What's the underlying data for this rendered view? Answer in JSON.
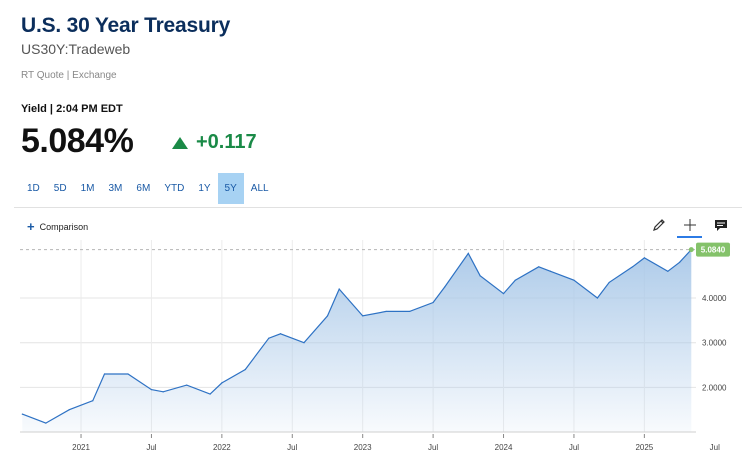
{
  "header": {
    "title": "U.S. 30 Year Treasury",
    "subtitle": "US30Y:Tradeweb",
    "quote_type": "RT Quote | Exchange",
    "yield_line": "Yield | 2:04 PM EDT",
    "price": "5.084%",
    "change": "+0.117"
  },
  "range_tabs": [
    "1D",
    "5D",
    "1M",
    "3M",
    "6M",
    "YTD",
    "1Y",
    "5Y",
    "ALL"
  ],
  "active_range": "5Y",
  "comparison_label": "Comparison",
  "toolbar": {
    "icons": [
      "pencil-icon",
      "crosshair-icon",
      "comment-icon"
    ]
  },
  "colors": {
    "up": "#1a8a47",
    "line": "#2e72c4",
    "area_top": "#a9c8e8",
    "last_badge": "#84c26a",
    "title": "#0b2e5c"
  },
  "chart_data": {
    "type": "area",
    "x_ticks": [
      "2021",
      "Jul",
      "2022",
      "Jul",
      "2023",
      "Jul",
      "2024",
      "Jul",
      "2025",
      "Jul"
    ],
    "y_ticks": [
      "2.0000",
      "3.0000",
      "4.0000"
    ],
    "last_value_label": "5.0840",
    "ylim": [
      1.0,
      5.3
    ],
    "x": [
      "2020-08",
      "2020-10",
      "2020-12",
      "2021-02",
      "2021-03",
      "2021-05",
      "2021-07",
      "2021-08",
      "2021-10",
      "2021-12",
      "2022-01",
      "2022-03",
      "2022-05",
      "2022-06",
      "2022-08",
      "2022-10",
      "2022-11",
      "2023-01",
      "2023-03",
      "2023-05",
      "2023-07",
      "2023-08",
      "2023-10",
      "2023-11",
      "2024-01",
      "2024-02",
      "2024-04",
      "2024-05",
      "2024-07",
      "2024-09",
      "2024-10",
      "2024-12",
      "2025-01",
      "2025-03",
      "2025-04",
      "2025-05"
    ],
    "values": [
      1.4,
      1.2,
      1.5,
      1.7,
      2.3,
      2.3,
      1.95,
      1.9,
      2.05,
      1.85,
      2.1,
      2.4,
      3.1,
      3.2,
      3.0,
      3.6,
      4.2,
      3.6,
      3.7,
      3.7,
      3.9,
      4.25,
      5.0,
      4.5,
      4.1,
      4.4,
      4.7,
      4.6,
      4.4,
      4.0,
      4.35,
      4.7,
      4.9,
      4.6,
      4.8,
      5.084
    ],
    "grid": true,
    "y_axis_position": "right"
  }
}
